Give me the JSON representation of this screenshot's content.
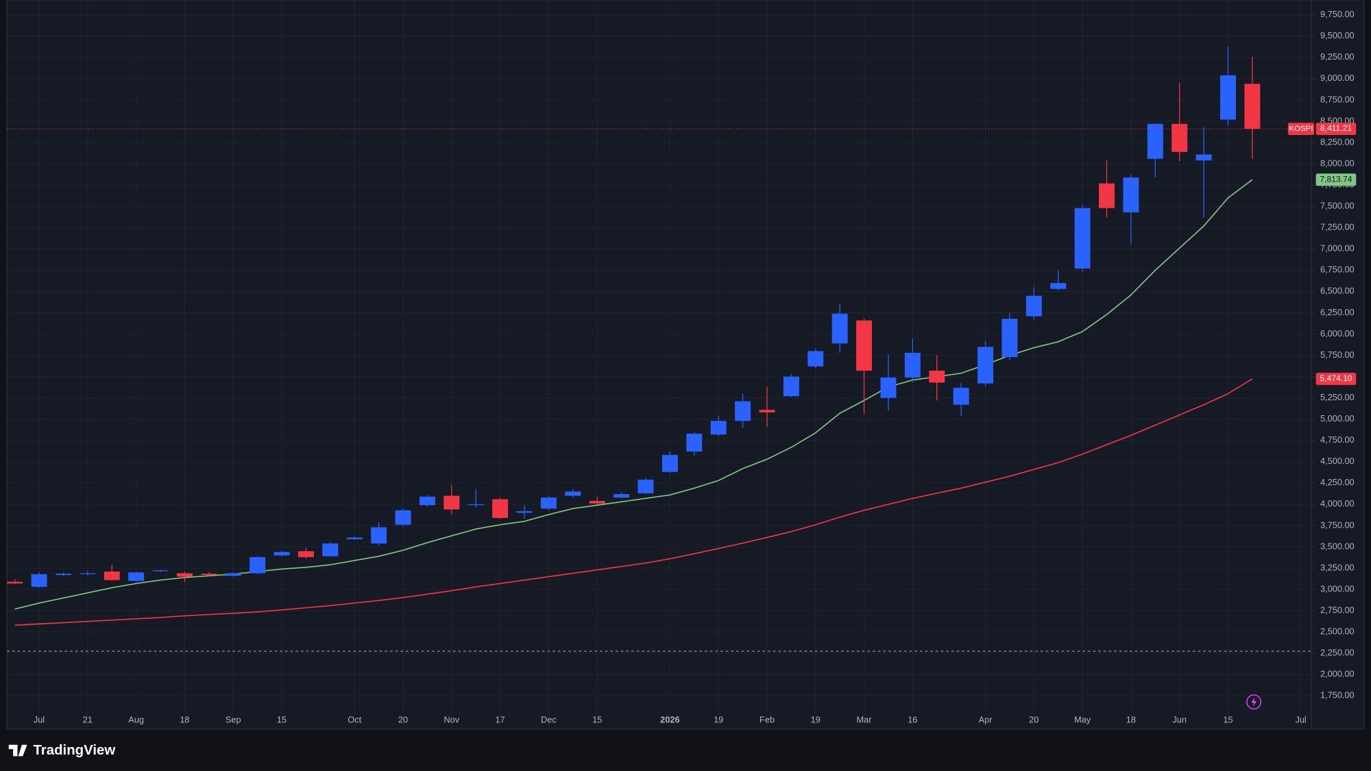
{
  "chart_data": {
    "type": "candlestick",
    "categories": [
      null,
      "Jul",
      null,
      "21",
      null,
      "Aug",
      null,
      "18",
      null,
      "Sep",
      null,
      "15",
      null,
      null,
      "Oct",
      null,
      "20",
      null,
      "Nov",
      null,
      "17",
      null,
      "Dec",
      null,
      "15",
      null,
      null,
      "2026",
      null,
      "19",
      null,
      "Feb",
      null,
      "19",
      null,
      "Mar",
      null,
      "16",
      null,
      null,
      "Apr",
      null,
      "20",
      null,
      "May",
      null,
      "18",
      null,
      "Jun",
      null,
      "15",
      null,
      null,
      "Jul"
    ],
    "open": [
      3090,
      3030,
      3170,
      3180,
      3210,
      3100,
      3215,
      3190,
      3185,
      3160,
      3190,
      3400,
      3450,
      3390,
      3590,
      3540,
      3760,
      3990,
      4100,
      3990,
      4060,
      3900,
      3950,
      4100,
      4040,
      4080,
      4130,
      4380,
      4620,
      4820,
      4980,
      5110,
      5270,
      5620,
      5890,
      6160,
      5250,
      5490,
      5570,
      5170,
      5420,
      5730,
      6210,
      6530,
      6770,
      7770,
      7430,
      8060,
      8470,
      8040,
      8520,
      8940,
      null,
      null
    ],
    "high": [
      3120,
      3200,
      3200,
      3215,
      3290,
      3210,
      3235,
      3210,
      3200,
      3200,
      3390,
      3450,
      3490,
      3550,
      3620,
      3790,
      3950,
      4110,
      4230,
      4180,
      4080,
      3990,
      4100,
      4180,
      4090,
      4140,
      4310,
      4620,
      4850,
      5040,
      5300,
      5380,
      5530,
      5830,
      6360,
      6180,
      5760,
      5950,
      5750,
      5430,
      5920,
      6250,
      6550,
      6750,
      7520,
      8040,
      7880,
      8470,
      8950,
      8430,
      9380,
      9260,
      null,
      null
    ],
    "low": [
      3060,
      3020,
      3160,
      3165,
      3100,
      3090,
      3205,
      3090,
      3160,
      3150,
      3180,
      3390,
      3360,
      3380,
      3580,
      3520,
      3740,
      3970,
      3880,
      3960,
      3830,
      3830,
      3930,
      4080,
      4000,
      4070,
      4120,
      4370,
      4570,
      4800,
      4900,
      4910,
      5260,
      5600,
      5780,
      5060,
      5100,
      5430,
      5220,
      5040,
      5390,
      5690,
      6170,
      6510,
      6730,
      7370,
      7050,
      7840,
      8030,
      7370,
      8450,
      8060,
      null,
      null
    ],
    "close": [
      3070,
      3180,
      3185,
      3190,
      3110,
      3200,
      3225,
      3150,
      3170,
      3190,
      3380,
      3440,
      3380,
      3540,
      3610,
      3730,
      3930,
      4090,
      3940,
      4000,
      3840,
      3920,
      4080,
      4150,
      4010,
      4120,
      4290,
      4580,
      4830,
      4980,
      5210,
      5080,
      5500,
      5800,
      6240,
      5570,
      5490,
      5780,
      5430,
      5370,
      5850,
      6180,
      6450,
      6600,
      7480,
      7480,
      7840,
      8470,
      8140,
      8110,
      9040,
      8411.21,
      null,
      null
    ],
    "up_color": "#2962ff",
    "down_color": "#f23645",
    "symbol": "KOSPI",
    "last_price_label": "8,411.21",
    "series": [
      {
        "color": "#81c784",
        "values": [
          2770,
          2840,
          2900,
          2960,
          3020,
          3070,
          3110,
          3140,
          3160,
          3180,
          3210,
          3240,
          3260,
          3290,
          3340,
          3390,
          3460,
          3550,
          3630,
          3710,
          3760,
          3800,
          3880,
          3950,
          3990,
          4030,
          4070,
          4110,
          4190,
          4280,
          4420,
          4530,
          4670,
          4840,
          5070,
          5220,
          5380,
          5460,
          5500,
          5540,
          5640,
          5750,
          5840,
          5910,
          6030,
          6230,
          6460,
          6750,
          7010,
          7270,
          7600,
          7813.74,
          null,
          null
        ],
        "last_label": "7,813.74"
      },
      {
        "color": "#f23645",
        "values": [
          2580,
          2595,
          2610,
          2625,
          2640,
          2655,
          2670,
          2690,
          2705,
          2720,
          2736,
          2760,
          2785,
          2810,
          2840,
          2870,
          2905,
          2945,
          2985,
          3030,
          3070,
          3110,
          3150,
          3190,
          3230,
          3270,
          3310,
          3360,
          3420,
          3480,
          3545,
          3610,
          3680,
          3760,
          3850,
          3930,
          4000,
          4070,
          4130,
          4190,
          4260,
          4330,
          4410,
          4490,
          4590,
          4700,
          4810,
          4930,
          5050,
          5170,
          5300,
          5474.1,
          null,
          null
        ],
        "last_label": "5,474.10"
      }
    ],
    "reference_line": 2275,
    "ylim": [
      1360,
      9925
    ],
    "yticks": [
      {
        "value": 1750,
        "label": "1,750.00"
      },
      {
        "value": 2000,
        "label": "2,000.00"
      },
      {
        "value": 2250,
        "label": "2,250.00"
      },
      {
        "value": 2500,
        "label": "2,500.00"
      },
      {
        "value": 2750,
        "label": "2,750.00"
      },
      {
        "value": 3000,
        "label": "3,000.00"
      },
      {
        "value": 3250,
        "label": "3,250.00"
      },
      {
        "value": 3500,
        "label": "3,500.00"
      },
      {
        "value": 3750,
        "label": "3,750.00"
      },
      {
        "value": 4000,
        "label": "4,000.00"
      },
      {
        "value": 4250,
        "label": "4,250.00"
      },
      {
        "value": 4500,
        "label": "4,500.00"
      },
      {
        "value": 4750,
        "label": "4,750.00"
      },
      {
        "value": 5000,
        "label": "5,000.00"
      },
      {
        "value": 5250,
        "label": "5,250.00"
      },
      {
        "value": 5500,
        "label": "5,500.00"
      },
      {
        "value": 5750,
        "label": "5,750.00"
      },
      {
        "value": 6000,
        "label": "6,000.00"
      },
      {
        "value": 6250,
        "label": "6,250.00"
      },
      {
        "value": 6500,
        "label": "6,500.00"
      },
      {
        "value": 6750,
        "label": "6,750.00"
      },
      {
        "value": 7000,
        "label": "7,000.00"
      },
      {
        "value": 7250,
        "label": "7,250.00"
      },
      {
        "value": 7500,
        "label": "7,500.00"
      },
      {
        "value": 7750,
        "label": "7,750.00"
      },
      {
        "value": 8000,
        "label": "8,000.00"
      },
      {
        "value": 8250,
        "label": "8,250.00"
      },
      {
        "value": 8500,
        "label": "8,500.00"
      },
      {
        "value": 8750,
        "label": "8,750.00"
      },
      {
        "value": 9000,
        "label": "9,000.00"
      },
      {
        "value": 9250,
        "label": "9,250.00"
      },
      {
        "value": 9500,
        "label": "9,500.00"
      },
      {
        "value": 9750,
        "label": "9,750.00"
      }
    ],
    "grid": true
  },
  "footer": {
    "brand": "TradingView"
  }
}
